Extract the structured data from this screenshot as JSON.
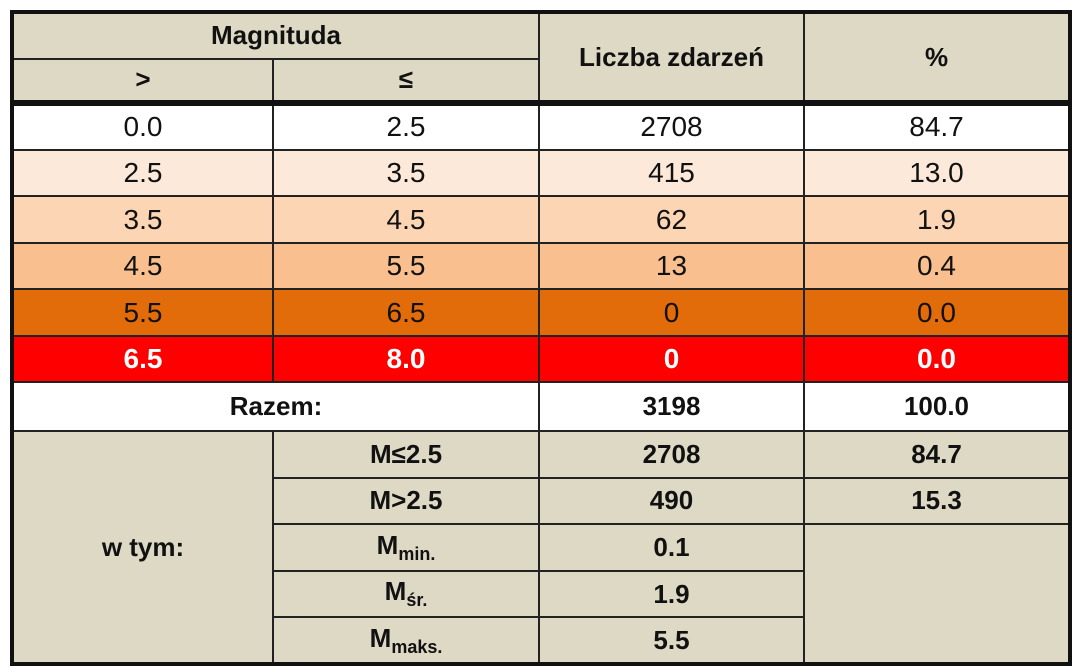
{
  "header": {
    "magnitude": "Magnituda",
    "gt": ">",
    "le": "≤",
    "count": "Liczba zdarzeń",
    "percent": "%"
  },
  "rows": [
    [
      "0.0",
      "2.5",
      "2708",
      "84.7"
    ],
    [
      "2.5",
      "3.5",
      "415",
      "13.0"
    ],
    [
      "3.5",
      "4.5",
      "62",
      "1.9"
    ],
    [
      "4.5",
      "5.5",
      "13",
      "0.4"
    ],
    [
      "5.5",
      "6.5",
      "0",
      "0.0"
    ],
    [
      "6.5",
      "8.0",
      "0",
      "0.0"
    ]
  ],
  "total": {
    "label": "Razem:",
    "count": "3198",
    "percent": "100.0"
  },
  "breakdown": {
    "label": "w tym:",
    "rows": [
      {
        "label": "M≤2.5",
        "count": "2708",
        "percent": "84.7"
      },
      {
        "label": "M>2.5",
        "count": "490",
        "percent": "15.3"
      }
    ],
    "stats": [
      {
        "symbol": "M",
        "subscript": "min.",
        "value": "0.1"
      },
      {
        "symbol": "M",
        "subscript": "śr.",
        "value": "1.9"
      },
      {
        "symbol": "M",
        "subscript": "maks.",
        "value": "5.5"
      }
    ]
  }
}
